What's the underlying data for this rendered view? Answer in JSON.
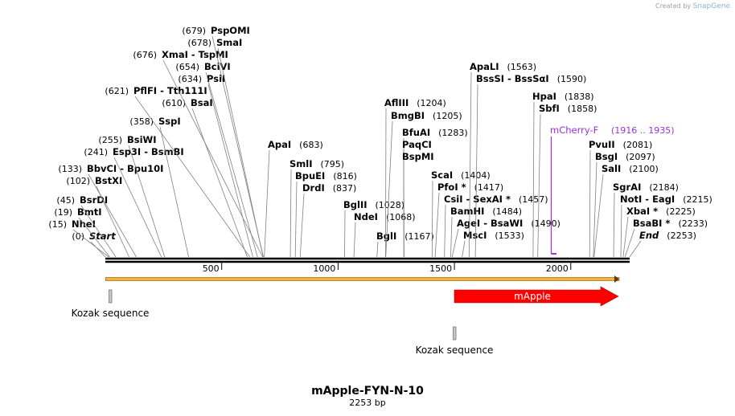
{
  "brand": {
    "created_by": "Created by",
    "name": "SnapGene"
  },
  "plasmid": {
    "name": "mApple-FYN-N-10",
    "length_label": "2253 bp",
    "length": 2253
  },
  "axis": {
    "ticks": [
      500,
      1000,
      1500,
      2000
    ]
  },
  "sites": [
    {
      "name": "Start",
      "pos": 0,
      "label": "(0)",
      "italic": true
    },
    {
      "name": "NheI",
      "pos": 15,
      "label": "(15)"
    },
    {
      "name": "BmtI",
      "pos": 19,
      "label": "(19)"
    },
    {
      "name": "BsrDI",
      "pos": 45,
      "label": "(45)"
    },
    {
      "name": "BstXI",
      "pos": 102,
      "label": "(102)"
    },
    {
      "name": "BbvCI  -  Bpu10I",
      "pos": 133,
      "label": "(133)"
    },
    {
      "name": "Esp3I  -  BsmBI",
      "pos": 241,
      "label": "(241)"
    },
    {
      "name": "BsiWI",
      "pos": 255,
      "label": "(255)"
    },
    {
      "name": "SspI",
      "pos": 358,
      "label": "(358)"
    },
    {
      "name": "BsaI",
      "pos": 610,
      "label": "(610)"
    },
    {
      "name": "PflFI  -  Tth111I",
      "pos": 621,
      "label": "(621)"
    },
    {
      "name": "PsiI",
      "pos": 634,
      "label": "(634)"
    },
    {
      "name": "BciVI",
      "pos": 654,
      "label": "(654)"
    },
    {
      "name": "XmaI  -  TspMI",
      "pos": 676,
      "label": "(676)"
    },
    {
      "name": "SmaI",
      "pos": 678,
      "label": "(678)"
    },
    {
      "name": "PspOMI",
      "pos": 679,
      "label": "(679)"
    },
    {
      "name": "ApaI",
      "pos": 683,
      "label": "(683)"
    },
    {
      "name": "SmlI",
      "pos": 795,
      "label": "(795)"
    },
    {
      "name": "BpuEI",
      "pos": 816,
      "label": "(816)"
    },
    {
      "name": "DrdI",
      "pos": 837,
      "label": "(837)"
    },
    {
      "name": "BglII",
      "pos": 1028,
      "label": "(1028)"
    },
    {
      "name": "NdeI",
      "pos": 1068,
      "label": "(1068)"
    },
    {
      "name": "BglI",
      "pos": 1167,
      "label": "(1167)"
    },
    {
      "name": "AflIII",
      "pos": 1204,
      "label": "(1204)"
    },
    {
      "name": "BmgBI",
      "pos": 1205,
      "label": "(1205)"
    },
    {
      "name": "BfuAI",
      "pos": 1283,
      "label": "(1283)"
    },
    {
      "name": "PaqCI",
      "pos": 1283,
      "label": ""
    },
    {
      "name": "BspMI",
      "pos": 1283,
      "label": ""
    },
    {
      "name": "ScaI",
      "pos": 1404,
      "label": "(1404)"
    },
    {
      "name": "PfoI *",
      "pos": 1417,
      "label": "(1417)"
    },
    {
      "name": "CsiI  -  SexAI *",
      "pos": 1457,
      "label": "(1457)"
    },
    {
      "name": "BamHI",
      "pos": 1484,
      "label": "(1484)"
    },
    {
      "name": "AgeI  -  BsaWI",
      "pos": 1490,
      "label": "(1490)"
    },
    {
      "name": "MscI",
      "pos": 1533,
      "label": "(1533)"
    },
    {
      "name": "ApaLI",
      "pos": 1563,
      "label": "(1563)"
    },
    {
      "name": "BssSI  -  BssSαI",
      "pos": 1590,
      "label": "(1590)"
    },
    {
      "name": "HpaI",
      "pos": 1838,
      "label": "(1838)"
    },
    {
      "name": "SbfI",
      "pos": 1858,
      "label": "(1858)"
    },
    {
      "name": "PvuII",
      "pos": 2081,
      "label": "(2081)"
    },
    {
      "name": "BsgI",
      "pos": 2097,
      "label": "(2097)"
    },
    {
      "name": "SalI",
      "pos": 2100,
      "label": "(2100)"
    },
    {
      "name": "SgrAI",
      "pos": 2184,
      "label": "(2184)"
    },
    {
      "name": "NotI  -  EagI",
      "pos": 2215,
      "label": "(2215)"
    },
    {
      "name": "XbaI *",
      "pos": 2225,
      "label": "(2225)"
    },
    {
      "name": "BsaBI *",
      "pos": 2233,
      "label": "(2233)"
    },
    {
      "name": "End",
      "pos": 2253,
      "label": "(2253)",
      "italic": true
    }
  ],
  "primer": {
    "name": "mCherry-F",
    "label": "(1916 .. 1935)",
    "start": 1916,
    "end": 1935,
    "color": "#9b30d9"
  },
  "features": [
    {
      "name": "Kozak sequence",
      "start": 20,
      "end": 30,
      "type": "box",
      "color": "#c8c8c8"
    },
    {
      "name": "Kozak sequence",
      "start": 1500,
      "end": 1510,
      "type": "box",
      "color": "#c8c8c8"
    },
    {
      "name": "mApple",
      "start": 1506,
      "end": 2208,
      "type": "arrow",
      "color": "#ff0000",
      "text_color": "#ffffff"
    }
  ],
  "orf": {
    "start": 1,
    "end": 2208,
    "color": "#f2b33d"
  }
}
